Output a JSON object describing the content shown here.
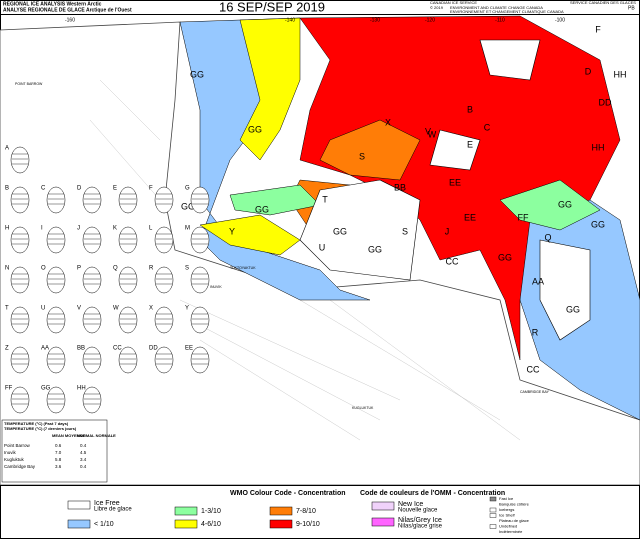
{
  "header": {
    "title_en": "REGIONAL ICE ANALYSIS  Western Arctic",
    "title_fr": "ANALYSE REGIONALE DE GLACE  Arctique de l'Ouest",
    "date": "16 SEP/SEP 2019",
    "agency_en": "CANADIAN ICE SERVICE",
    "agency_fr": "SERVICE CANADIEN DES GLACES",
    "copyright": "© 2019",
    "dept_en": "ENVIRONMENT AND CLIMATE CHANGE CANADA",
    "dept_fr": "ENVIRONNEMENT ET CHANGEMENT CLIMATIQUE CANADA",
    "code": "PB"
  },
  "map": {
    "longitudes": [
      "-160",
      "-140",
      "-130",
      "-120",
      "-110",
      "-100"
    ],
    "regions": [
      "GG",
      "GG",
      "GG",
      "GG",
      "Y",
      "T",
      "S",
      "X",
      "V",
      "U",
      "GG",
      "GG",
      "S",
      "BB",
      "EE",
      "J",
      "EE",
      "CC",
      "GG",
      "Q",
      "FF",
      "GG",
      "AA",
      "R",
      "GG",
      "CC",
      "W",
      "E",
      "C",
      "B",
      "D",
      "F",
      "HH",
      "DD",
      "HH",
      "GG"
    ],
    "places": [
      "POINT BARROW",
      "INUVIK",
      "TUKTOYAKTUK",
      "KUGLUKTUK",
      "CAMBRIDGE BAY"
    ]
  },
  "eggs": [
    "A",
    "B",
    "C",
    "D",
    "E",
    "F",
    "G",
    "H",
    "I",
    "J",
    "K",
    "L",
    "M",
    "N",
    "O",
    "P",
    "Q",
    "R",
    "S",
    "T",
    "U",
    "V",
    "W",
    "X",
    "Y",
    "Z",
    "AA",
    "BB",
    "CC",
    "DD",
    "EE",
    "FF",
    "GG",
    "HH"
  ],
  "temperature": {
    "title_en": "TEMPERATURE (°C)  (Past 7 days)",
    "title_fr": "TEMPERATURE (°C)  (7 derniers jours)",
    "columns": [
      "MEAN MOYENNE",
      "NORMAL NORMALE"
    ],
    "rows": [
      [
        "Point Barrow",
        "0.6",
        "0.4"
      ],
      [
        "Inuvik",
        "7.0",
        "4.5"
      ],
      [
        "Kugluktuk",
        "5.8",
        "3.4"
      ],
      [
        "Cambridge Bay",
        "3.6",
        "0.4"
      ]
    ]
  },
  "legend": {
    "wmo_title": "WMO Colour Code - Concentration",
    "omm_title": "Code de couleurs de l'OMM - Concentration",
    "items": [
      {
        "label": "Ice Free",
        "label_fr": "Libre de glace",
        "color": "#ffffff"
      },
      {
        "label": "< 1/10",
        "color": "#96c8ff"
      },
      {
        "label": "1-3/10",
        "color": "#8cff9f"
      },
      {
        "label": "4-6/10",
        "color": "#ffff00"
      },
      {
        "label": "7-8/10",
        "color": "#ff7d07"
      },
      {
        "label": "9-10/10",
        "color": "#ff0000"
      },
      {
        "label": "New Ice",
        "label_fr": "Nouvelle glace",
        "color": "#f0d2fa"
      },
      {
        "label": "Nilas/Grey Ice",
        "label_fr": "Nilas/glace grise",
        "color": "#ff64ff"
      }
    ],
    "small": [
      "Fast Ice",
      "Banquise côtière",
      "Icebergs",
      "Ice Shelf",
      "Plateau de glace",
      "Undefined",
      "Indéterminée"
    ]
  }
}
